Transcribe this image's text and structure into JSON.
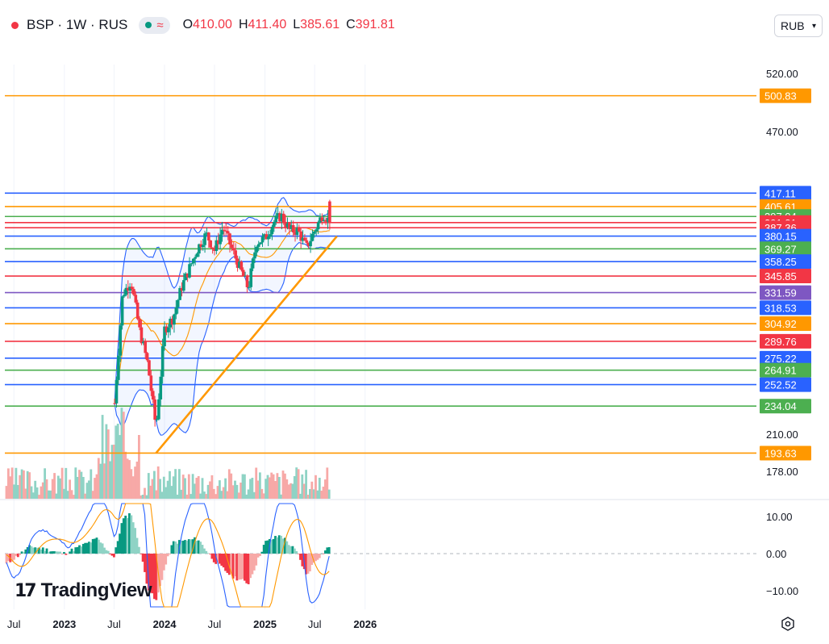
{
  "header": {
    "symbol": "BSP · 1W · RUS",
    "ohlc": [
      {
        "key": "O",
        "value": "410.00"
      },
      {
        "key": "H",
        "value": "411.40"
      },
      {
        "key": "L",
        "value": "385.61"
      },
      {
        "key": "C",
        "value": "391.81"
      }
    ]
  },
  "currency_select": {
    "value": "RUB"
  },
  "brand": {
    "name": "TradingView"
  },
  "colors": {
    "up": "#089981",
    "down": "#f23645",
    "up_light": "#8fd3c5",
    "down_light": "#f7a9a7",
    "orange": "#ff9800",
    "blue": "#2962ff",
    "green": "#4caf50",
    "red": "#f23645",
    "purple": "#7e57c2",
    "bb": "#2962ff",
    "grid": "#f0f3fa"
  },
  "chart_data": [
    {
      "type": "candlestick",
      "title": "BSP · 1W · RUS",
      "ylim": [
        160,
        530
      ],
      "y_ticks": [
        "520.00",
        "470.00",
        "210.00",
        "178.00"
      ],
      "x_ticks": [
        "Jul",
        "2023",
        "Jul",
        "2024",
        "Jul",
        "2025",
        "Jul",
        "2026"
      ],
      "anchor_points": [
        {
          "date": "2022-06",
          "close": 178
        },
        {
          "date": "2023-01",
          "close": 180
        },
        {
          "date": "2023-06",
          "close": 180
        },
        {
          "date": "2023-07",
          "close": 230
        },
        {
          "date": "2023-08",
          "close": 330
        },
        {
          "date": "2023-09",
          "close": 342
        },
        {
          "date": "2023-10",
          "close": 300
        },
        {
          "date": "2023-11",
          "close": 270
        },
        {
          "date": "2023-12",
          "close": 215
        },
        {
          "date": "2024-01",
          "close": 300
        },
        {
          "date": "2024-02",
          "close": 310
        },
        {
          "date": "2024-03",
          "close": 335
        },
        {
          "date": "2024-05",
          "close": 370
        },
        {
          "date": "2024-06",
          "close": 382
        },
        {
          "date": "2024-07",
          "close": 368
        },
        {
          "date": "2024-08",
          "close": 388
        },
        {
          "date": "2024-09",
          "close": 370
        },
        {
          "date": "2024-11",
          "close": 335
        },
        {
          "date": "2024-12",
          "close": 375
        },
        {
          "date": "2025-01",
          "close": 378
        },
        {
          "date": "2025-02",
          "close": 392
        },
        {
          "date": "2025-03",
          "close": 398
        },
        {
          "date": "2025-04",
          "close": 385
        },
        {
          "date": "2025-05",
          "close": 385
        },
        {
          "date": "2025-06",
          "close": 370
        },
        {
          "date": "2025-07",
          "close": 385
        },
        {
          "date": "2025-08",
          "close": 400
        },
        {
          "date": "2025-08-25",
          "close": 391.81
        }
      ],
      "price_labels": [
        {
          "value": "500.83",
          "color": "#ff9800"
        },
        {
          "value": "417.11",
          "color": "#2962ff"
        },
        {
          "value": "405.61",
          "color": "#ff9800"
        },
        {
          "value": "397.04",
          "color": "#4caf50"
        },
        {
          "value": "391.81",
          "color": "#f23645"
        },
        {
          "value": "387.36",
          "color": "#f23645"
        },
        {
          "value": "380.15",
          "color": "#2962ff"
        },
        {
          "value": "369.27",
          "color": "#4caf50"
        },
        {
          "value": "358.25",
          "color": "#2962ff"
        },
        {
          "value": "345.85",
          "color": "#f23645"
        },
        {
          "value": "331.59",
          "color": "#7e57c2"
        },
        {
          "value": "318.53",
          "color": "#2962ff"
        },
        {
          "value": "304.92",
          "color": "#ff9800"
        },
        {
          "value": "289.76",
          "color": "#f23645"
        },
        {
          "value": "275.22",
          "color": "#2962ff"
        },
        {
          "value": "264.91",
          "color": "#4caf50"
        },
        {
          "value": "252.52",
          "color": "#2962ff"
        },
        {
          "value": "234.04",
          "color": "#4caf50"
        },
        {
          "value": "193.63",
          "color": "#ff9800"
        }
      ],
      "trendline": {
        "from": {
          "date": "2023-12",
          "price": 193.63
        },
        "to": {
          "date": "2025-09-20",
          "price": 380
        }
      }
    },
    {
      "type": "macd",
      "ylim": [
        -13,
        13
      ],
      "y_ticks": [
        "10.00",
        "0.00",
        "−10.00"
      ],
      "histogram_anchors": [
        {
          "date": "2022-06",
          "value": -3
        },
        {
          "date": "2022-09",
          "value": 2
        },
        {
          "date": "2023-01",
          "value": 0
        },
        {
          "date": "2023-05",
          "value": 4
        },
        {
          "date": "2023-07",
          "value": -1
        },
        {
          "date": "2023-08",
          "value": 9
        },
        {
          "date": "2023-09",
          "value": 11
        },
        {
          "date": "2023-10",
          "value": 2
        },
        {
          "date": "2023-11",
          "value": -9
        },
        {
          "date": "2023-12",
          "value": -13
        },
        {
          "date": "2024-01",
          "value": -4
        },
        {
          "date": "2024-02",
          "value": 3
        },
        {
          "date": "2024-05",
          "value": 4
        },
        {
          "date": "2024-07",
          "value": -2
        },
        {
          "date": "2024-09",
          "value": -6
        },
        {
          "date": "2024-11",
          "value": -8
        },
        {
          "date": "2025-01",
          "value": 3
        },
        {
          "date": "2025-03",
          "value": 5
        },
        {
          "date": "2025-05",
          "value": 0
        },
        {
          "date": "2025-06",
          "value": -6
        },
        {
          "date": "2025-07",
          "value": -2
        },
        {
          "date": "2025-08-25",
          "value": 2
        }
      ]
    }
  ]
}
